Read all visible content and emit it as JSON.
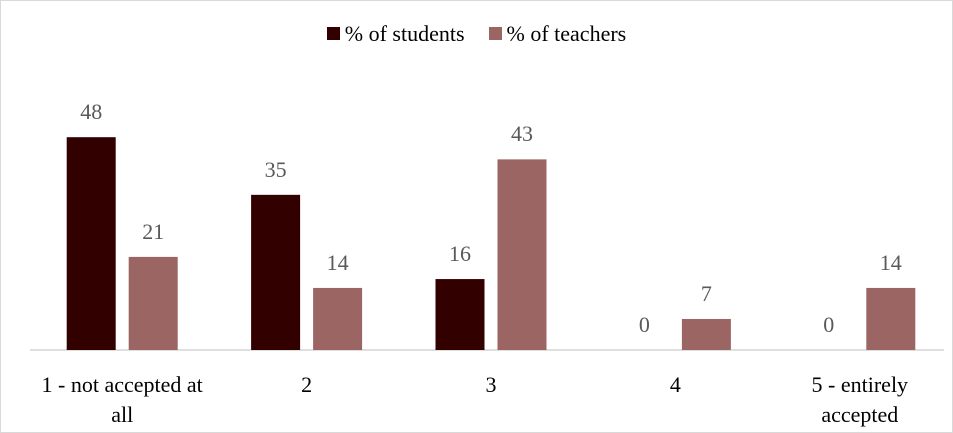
{
  "chart_data": {
    "type": "bar",
    "categories": [
      "1 - not accepted at all",
      "2",
      "3",
      "4",
      "5 - entirely accepted"
    ],
    "series": [
      {
        "name": "% of students",
        "color": "#330000",
        "values": [
          48,
          35,
          16,
          0,
          0
        ]
      },
      {
        "name": "% of teachers",
        "color": "#9b6563",
        "values": [
          21,
          14,
          43,
          7,
          14
        ]
      }
    ],
    "ylim": [
      0,
      60
    ],
    "legend": "top"
  }
}
